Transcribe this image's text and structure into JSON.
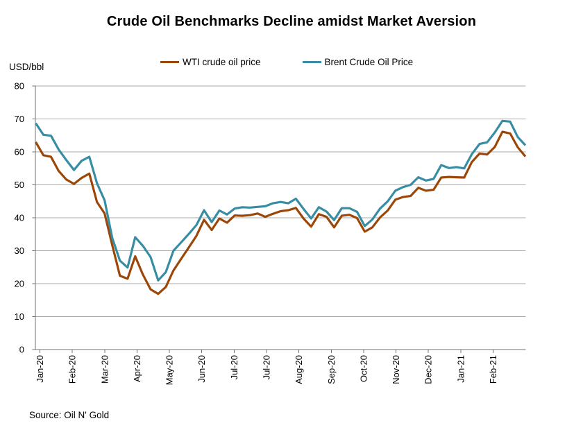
{
  "title": "Crude Oil Benchmarks Decline amidst Market Aversion",
  "y_axis_unit": "USD/bbl",
  "source": "Source: Oil N' Gold",
  "legend": [
    {
      "label": "WTI crude oil price",
      "color": "#9C4708"
    },
    {
      "label": "Brent Crude Oil Price",
      "color": "#378DA3"
    }
  ],
  "colors": {
    "wti": "#9C4708",
    "brent": "#378DA3",
    "axis": "#707070",
    "gridline": "#A9A9A9",
    "text": "#000000"
  },
  "chart_data": {
    "type": "line",
    "title": "Crude Oil Benchmarks Decline amidst Market Aversion",
    "xlabel": "",
    "ylabel": "USD/bbl",
    "ylim": [
      0,
      80
    ],
    "y_ticks": [
      0,
      10,
      20,
      30,
      40,
      50,
      60,
      70,
      80
    ],
    "grid": "horizontal",
    "legend_position": "top",
    "x_tick_labels": [
      "Jan-20",
      "Feb-20",
      "Mar-20",
      "Apr-20",
      "May-20",
      "Jun-20",
      "Jul-20",
      "Jul-20",
      "Aug-20",
      "Sep-20",
      "Oct-20",
      "Nov-20",
      "Dec-20",
      "Jan-21",
      "Feb-21"
    ],
    "x_description": "Weekly prices, Jan 2020 through late Mar 2021; axis labels every 4 weeks",
    "series": [
      {
        "name": "WTI crude oil price",
        "color": "#9C4708",
        "values": [
          63.0,
          59.0,
          58.5,
          54.2,
          51.6,
          50.3,
          52.1,
          53.4,
          44.8,
          41.3,
          31.7,
          22.4,
          21.5,
          28.3,
          22.8,
          18.3,
          16.9,
          19.0,
          24.0,
          27.5,
          31.0,
          34.5,
          39.4,
          36.3,
          39.8,
          38.5,
          40.7,
          40.6,
          40.8,
          41.3,
          40.3,
          41.2,
          42.0,
          42.3,
          43.0,
          39.8,
          37.3,
          41.1,
          40.3,
          37.1,
          40.6,
          40.9,
          39.9,
          35.8,
          37.1,
          40.1,
          42.2,
          45.5,
          46.3,
          46.6,
          49.1,
          48.2,
          48.5,
          52.2,
          52.4,
          52.3,
          52.2,
          56.9,
          59.5,
          59.2,
          61.5,
          66.1,
          65.6,
          61.4,
          58.6
        ]
      },
      {
        "name": "Brent Crude Oil Price",
        "color": "#378DA3",
        "values": [
          68.7,
          65.2,
          64.9,
          60.7,
          57.5,
          54.5,
          57.3,
          58.5,
          50.5,
          45.3,
          33.9,
          27.0,
          24.9,
          34.1,
          31.5,
          28.1,
          21.0,
          23.5,
          30.0,
          32.5,
          35.1,
          37.8,
          42.3,
          38.7,
          42.2,
          41.0,
          42.8,
          43.2,
          43.1,
          43.3,
          43.5,
          44.4,
          44.8,
          44.4,
          45.8,
          42.7,
          39.8,
          43.2,
          41.9,
          39.3,
          42.9,
          42.9,
          41.8,
          37.5,
          39.5,
          42.8,
          45.0,
          48.2,
          49.3,
          50.0,
          52.3,
          51.3,
          51.8,
          56.0,
          55.1,
          55.4,
          55.0,
          59.3,
          62.4,
          62.9,
          65.9,
          69.4,
          69.2,
          64.5,
          62.0
        ]
      }
    ]
  }
}
